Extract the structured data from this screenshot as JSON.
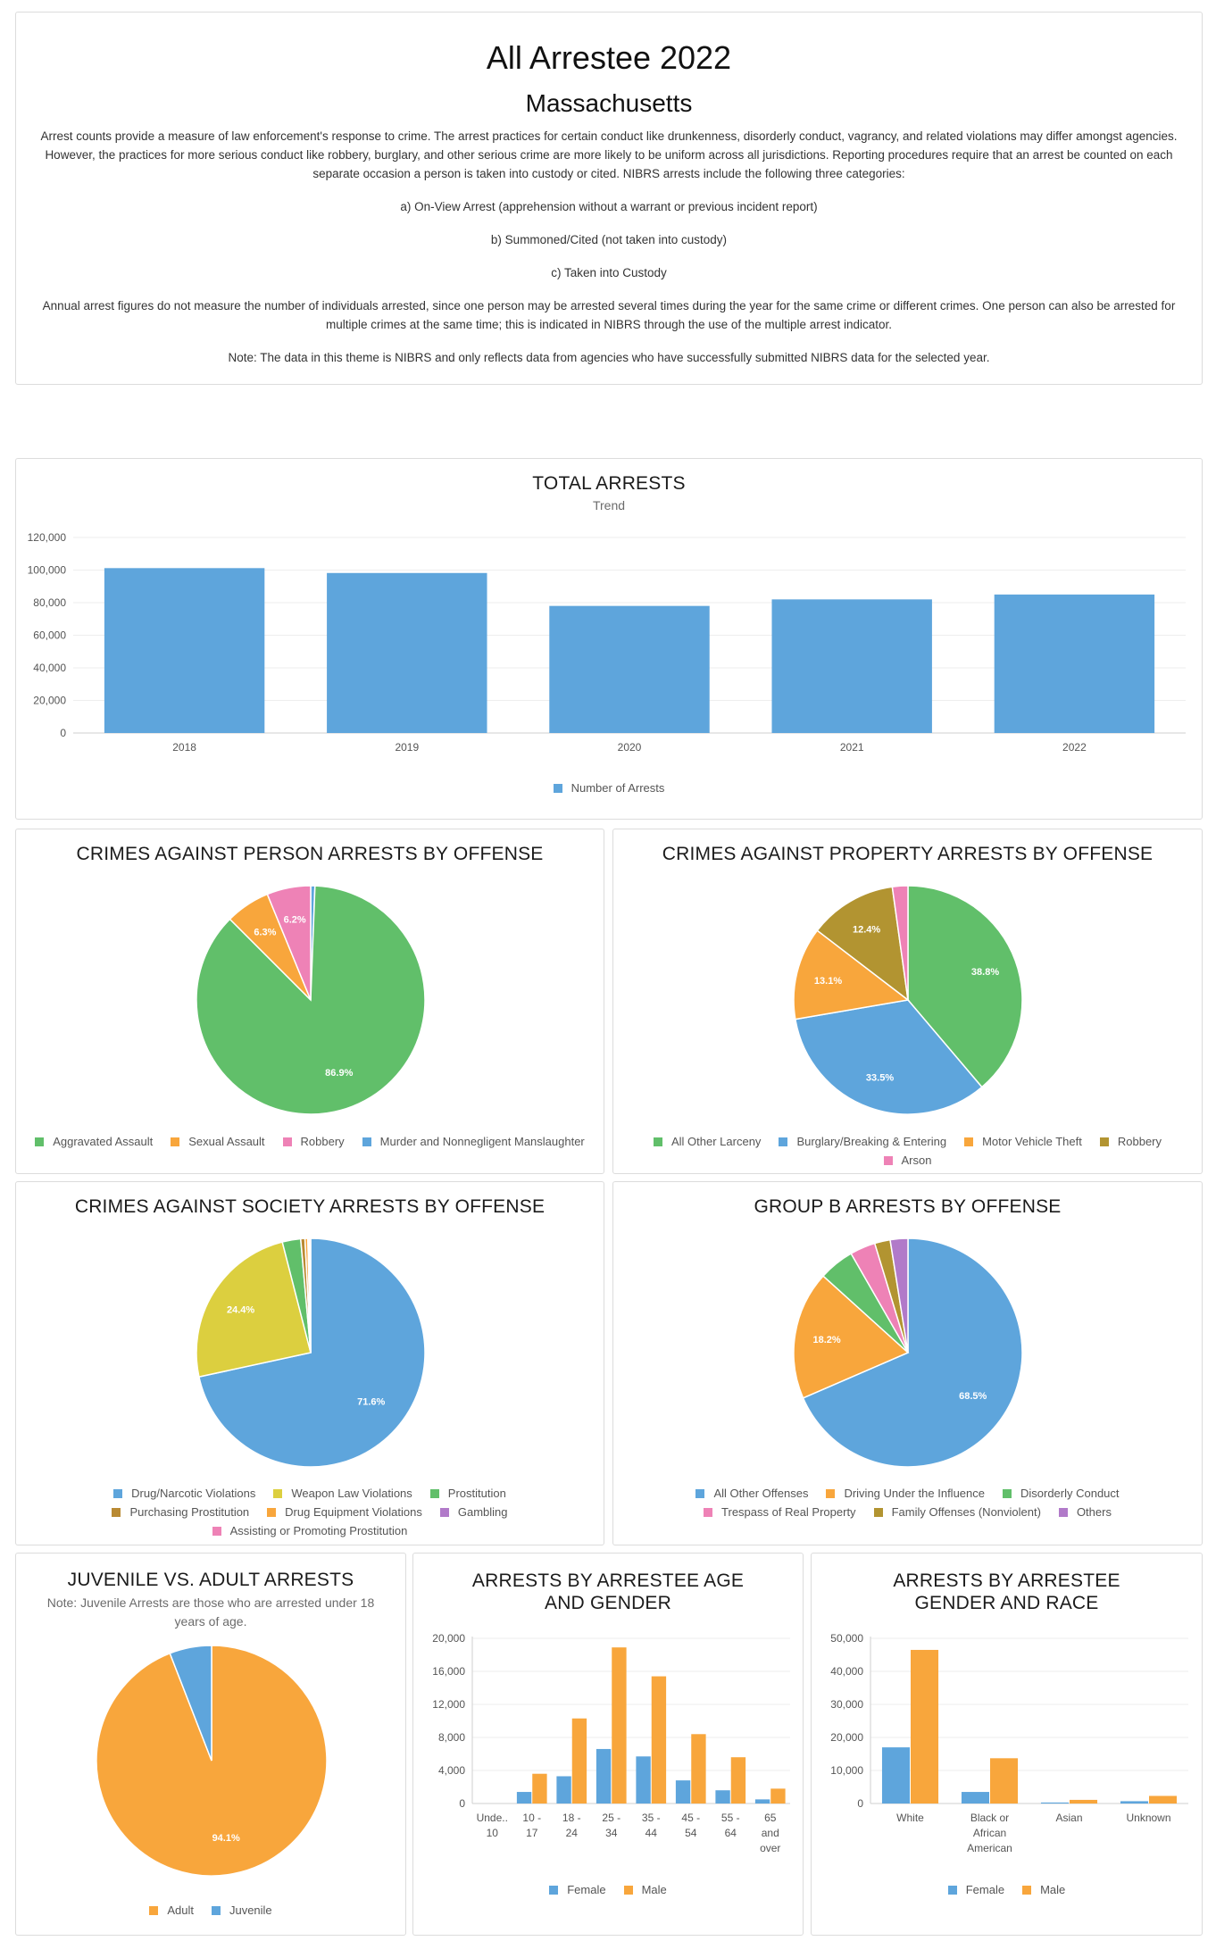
{
  "header": {
    "title": "All Arrestee 2022",
    "subtitle": "Massachusetts",
    "paragraphs": [
      "Arrest counts provide a measure of law enforcement's response to crime. The arrest practices for certain conduct like drunkenness, disorderly conduct, vagrancy, and related violations may differ amongst agencies. However, the practices for more serious conduct like robbery, burglary, and other serious crime are more likely to be uniform across all jurisdictions. Reporting procedures require that an arrest be counted on each separate occasion a person is taken into custody or cited. NIBRS arrests include the following three categories:",
      "a) On-View Arrest (apprehension without a warrant or previous incident report)",
      "b) Summoned/Cited (not taken into custody)",
      "c) Taken into Custody",
      "Annual arrest figures do not measure the number of individuals arrested, since one person may be arrested several times during the year for the same crime or different crimes. One person can also be arrested for multiple crimes at the same time; this is indicated in NIBRS through the use of the multiple arrest indicator.",
      "Note: The data in this theme is NIBRS and only reflects data from agencies who have successfully submitted NIBRS data for the selected year."
    ]
  },
  "colors": {
    "blue": "#5ea5dc",
    "orange": "#f8a63c",
    "green": "#61bf6a",
    "pink": "#ee82b6",
    "olive": "#b29431",
    "yellow": "#dccf3f",
    "purple": "#b17ac9",
    "brown": "#b98a33",
    "grey": "#ababab"
  },
  "chart_data": [
    {
      "id": "total",
      "type": "bar",
      "title": "TOTAL ARRESTS",
      "subtitle": "Trend",
      "categories": [
        "2018",
        "2019",
        "2020",
        "2021",
        "2022"
      ],
      "series": [
        {
          "name": "Number of Arrests",
          "color": "#5ea5dc",
          "values": [
            101200,
            98200,
            78000,
            82000,
            85000
          ]
        }
      ],
      "ylim": [
        0,
        120000
      ],
      "yticks": [
        "0",
        "20,000",
        "40,000",
        "60,000",
        "80,000",
        "100,000",
        "120,000"
      ]
    },
    {
      "id": "person",
      "type": "pie",
      "title": "CRIMES AGAINST PERSON ARRESTS BY OFFENSE",
      "slices": [
        {
          "label": "Murder and Nonnegligent Manslaughter",
          "value": 0.6,
          "color": "#5ea5dc",
          "text": ""
        },
        {
          "label": "Aggravated Assault",
          "value": 86.9,
          "color": "#61bf6a",
          "text": "86.9%"
        },
        {
          "label": "Sexual Assault",
          "value": 6.3,
          "color": "#f8a63c",
          "text": "6.3%"
        },
        {
          "label": "Robbery",
          "value": 6.2,
          "color": "#ee82b6",
          "text": "6.2%"
        }
      ],
      "legend": [
        "Aggravated Assault",
        "Sexual Assault",
        "Robbery",
        "Murder and Nonnegligent Manslaughter"
      ]
    },
    {
      "id": "property",
      "type": "pie",
      "title": "CRIMES AGAINST PROPERTY ARRESTS BY OFFENSE",
      "slices": [
        {
          "label": "All Other Larceny",
          "value": 38.8,
          "color": "#61bf6a",
          "text": "38.8%"
        },
        {
          "label": "Burglary/Breaking & Entering",
          "value": 33.5,
          "color": "#5ea5dc",
          "text": "33.5%"
        },
        {
          "label": "Motor Vehicle Theft",
          "value": 13.1,
          "color": "#f8a63c",
          "text": "13.1%"
        },
        {
          "label": "Robbery",
          "value": 12.4,
          "color": "#b29431",
          "text": "12.4%"
        },
        {
          "label": "Arson",
          "value": 2.2,
          "color": "#ee82b6",
          "text": ""
        }
      ],
      "legend": [
        "All Other Larceny",
        "Burglary/Breaking & Entering",
        "Motor Vehicle Theft",
        "Robbery",
        "Arson"
      ]
    },
    {
      "id": "society",
      "type": "pie",
      "title": "CRIMES AGAINST SOCIETY ARRESTS BY OFFENSE",
      "slices": [
        {
          "label": "Drug/Narcotic Violations",
          "value": 71.6,
          "color": "#5ea5dc",
          "text": "71.6%"
        },
        {
          "label": "Weapon Law Violations",
          "value": 24.4,
          "color": "#dccf3f",
          "text": "24.4%"
        },
        {
          "label": "Prostitution",
          "value": 2.6,
          "color": "#61bf6a",
          "text": ""
        },
        {
          "label": "Purchasing Prostitution",
          "value": 0.6,
          "color": "#b98a33",
          "text": ""
        },
        {
          "label": "Drug Equipment Violations",
          "value": 0.4,
          "color": "#f8a63c",
          "text": ""
        },
        {
          "label": "Gambling",
          "value": 0.2,
          "color": "#b17ac9",
          "text": ""
        },
        {
          "label": "Assisting or Promoting Prostitution",
          "value": 0.2,
          "color": "#ee82b6",
          "text": ""
        }
      ],
      "legend": [
        "Drug/Narcotic Violations",
        "Weapon Law Violations",
        "Prostitution",
        "Purchasing Prostitution",
        "Drug Equipment Violations",
        "Gambling",
        "Assisting or Promoting Prostitution"
      ]
    },
    {
      "id": "groupb",
      "type": "pie",
      "title": "GROUP B ARRESTS BY OFFENSE",
      "slices": [
        {
          "label": "All Other Offenses",
          "value": 68.5,
          "color": "#5ea5dc",
          "text": "68.5%"
        },
        {
          "label": "Driving Under the Influence",
          "value": 18.2,
          "color": "#f8a63c",
          "text": "18.2%"
        },
        {
          "label": "Disorderly Conduct",
          "value": 5.0,
          "color": "#61bf6a",
          "text": ""
        },
        {
          "label": "Trespass of Real Property",
          "value": 3.6,
          "color": "#ee82b6",
          "text": ""
        },
        {
          "label": "Family Offenses (Nonviolent)",
          "value": 2.2,
          "color": "#b29431",
          "text": ""
        },
        {
          "label": "Others",
          "value": 2.5,
          "color": "#b17ac9",
          "text": ""
        }
      ],
      "legend": [
        "All Other Offenses",
        "Driving Under the Influence",
        "Disorderly Conduct",
        "Trespass of Real Property",
        "Family Offenses (Nonviolent)",
        "Others"
      ]
    },
    {
      "id": "juvenile",
      "type": "pie",
      "title": "JUVENILE VS. ADULT ARRESTS",
      "note": "Note: Juvenile Arrests are those who are arrested under 18 years of age.",
      "slices": [
        {
          "label": "Adult",
          "value": 94.1,
          "color": "#f8a63c",
          "text": "94.1%"
        },
        {
          "label": "Juvenile",
          "value": 5.9,
          "color": "#5ea5dc",
          "text": ""
        }
      ],
      "legend": [
        "Adult",
        "Juvenile"
      ]
    },
    {
      "id": "agegender",
      "type": "bar",
      "title": "ARRESTS BY ARRESTEE AGE AND GENDER",
      "categories": [
        [
          "Unde..",
          "10"
        ],
        [
          "10 -",
          "17"
        ],
        [
          "18 -",
          "24"
        ],
        [
          "25 -",
          "34"
        ],
        [
          "35 -",
          "44"
        ],
        [
          "45 -",
          "54"
        ],
        [
          "55 -",
          "64"
        ],
        [
          "65",
          "and",
          "over"
        ]
      ],
      "series": [
        {
          "name": "Female",
          "color": "#5ea5dc",
          "values": [
            0,
            1400,
            3300,
            6600,
            5700,
            2800,
            1600,
            500
          ]
        },
        {
          "name": "Male",
          "color": "#f8a63c",
          "values": [
            0,
            3600,
            10300,
            18900,
            15400,
            8400,
            5600,
            1800
          ]
        }
      ],
      "ylim": [
        0,
        20000
      ],
      "yticks": [
        "0",
        "4,000",
        "8,000",
        "12,000",
        "16,000",
        "20,000"
      ]
    },
    {
      "id": "genderrace",
      "type": "bar",
      "title": "ARRESTS BY ARRESTEE GENDER AND RACE",
      "categories": [
        [
          "White"
        ],
        [
          "Black or",
          "African",
          "American"
        ],
        [
          "Asian"
        ],
        [
          "Unknown"
        ]
      ],
      "series": [
        {
          "name": "Female",
          "color": "#5ea5dc",
          "values": [
            17000,
            3500,
            300,
            700
          ]
        },
        {
          "name": "Male",
          "color": "#f8a63c",
          "values": [
            46500,
            13700,
            1100,
            2300
          ]
        }
      ],
      "ylim": [
        0,
        50000
      ],
      "yticks": [
        "0",
        "10,000",
        "20,000",
        "30,000",
        "40,000",
        "50,000"
      ]
    }
  ]
}
